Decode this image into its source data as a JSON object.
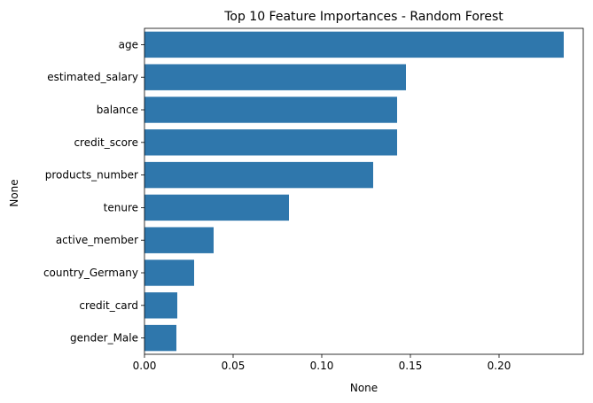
{
  "chart_data": {
    "type": "bar",
    "orientation": "horizontal",
    "title": "Top 10 Feature Importances - Random Forest",
    "xlabel": "None",
    "ylabel": "None",
    "categories": [
      "age",
      "estimated_salary",
      "balance",
      "credit_score",
      "products_number",
      "tenure",
      "active_member",
      "country_Germany",
      "credit_card",
      "gender_Male"
    ],
    "values": [
      0.2365,
      0.1475,
      0.1425,
      0.1425,
      0.129,
      0.0815,
      0.039,
      0.028,
      0.0185,
      0.018
    ],
    "xlim": [
      0,
      0.2475
    ],
    "xticks": [
      0.0,
      0.05,
      0.1,
      0.15,
      0.2
    ],
    "xtick_labels": [
      "0.00",
      "0.05",
      "0.10",
      "0.15",
      "0.20"
    ],
    "bar_color": "#2f77ac",
    "grid": false,
    "legend": false
  }
}
